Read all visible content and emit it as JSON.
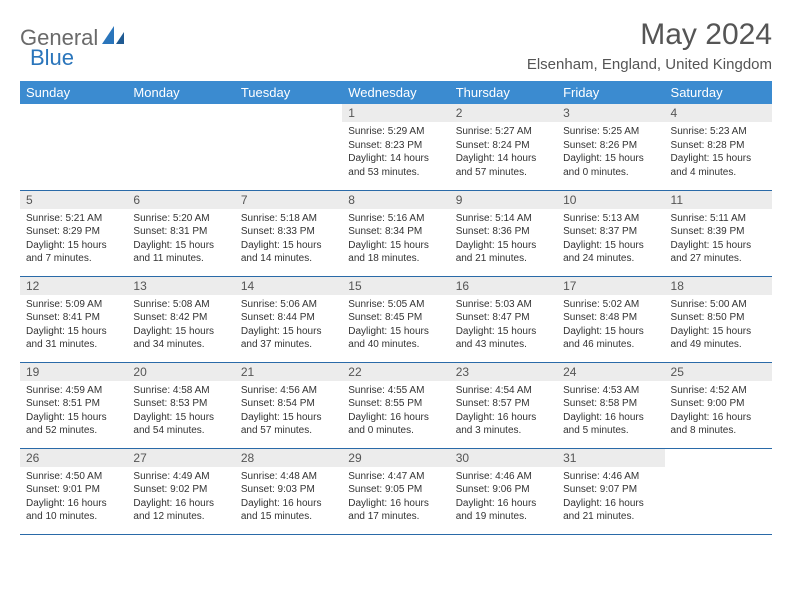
{
  "logo": {
    "general": "General",
    "blue": "Blue"
  },
  "title": "May 2024",
  "location": "Elsenham, England, United Kingdom",
  "colors": {
    "header_bg": "#3b8bd0",
    "header_text": "#ffffff",
    "daynum_bg": "#ececec",
    "row_border": "#2a6aa8",
    "logo_gray": "#6a6a6a",
    "logo_blue": "#2a75bb"
  },
  "weekdays": [
    "Sunday",
    "Monday",
    "Tuesday",
    "Wednesday",
    "Thursday",
    "Friday",
    "Saturday"
  ],
  "weeks": [
    [
      null,
      null,
      null,
      {
        "n": "1",
        "sr": "Sunrise: 5:29 AM",
        "ss": "Sunset: 8:23 PM",
        "dl": "Daylight: 14 hours and 53 minutes."
      },
      {
        "n": "2",
        "sr": "Sunrise: 5:27 AM",
        "ss": "Sunset: 8:24 PM",
        "dl": "Daylight: 14 hours and 57 minutes."
      },
      {
        "n": "3",
        "sr": "Sunrise: 5:25 AM",
        "ss": "Sunset: 8:26 PM",
        "dl": "Daylight: 15 hours and 0 minutes."
      },
      {
        "n": "4",
        "sr": "Sunrise: 5:23 AM",
        "ss": "Sunset: 8:28 PM",
        "dl": "Daylight: 15 hours and 4 minutes."
      }
    ],
    [
      {
        "n": "5",
        "sr": "Sunrise: 5:21 AM",
        "ss": "Sunset: 8:29 PM",
        "dl": "Daylight: 15 hours and 7 minutes."
      },
      {
        "n": "6",
        "sr": "Sunrise: 5:20 AM",
        "ss": "Sunset: 8:31 PM",
        "dl": "Daylight: 15 hours and 11 minutes."
      },
      {
        "n": "7",
        "sr": "Sunrise: 5:18 AM",
        "ss": "Sunset: 8:33 PM",
        "dl": "Daylight: 15 hours and 14 minutes."
      },
      {
        "n": "8",
        "sr": "Sunrise: 5:16 AM",
        "ss": "Sunset: 8:34 PM",
        "dl": "Daylight: 15 hours and 18 minutes."
      },
      {
        "n": "9",
        "sr": "Sunrise: 5:14 AM",
        "ss": "Sunset: 8:36 PM",
        "dl": "Daylight: 15 hours and 21 minutes."
      },
      {
        "n": "10",
        "sr": "Sunrise: 5:13 AM",
        "ss": "Sunset: 8:37 PM",
        "dl": "Daylight: 15 hours and 24 minutes."
      },
      {
        "n": "11",
        "sr": "Sunrise: 5:11 AM",
        "ss": "Sunset: 8:39 PM",
        "dl": "Daylight: 15 hours and 27 minutes."
      }
    ],
    [
      {
        "n": "12",
        "sr": "Sunrise: 5:09 AM",
        "ss": "Sunset: 8:41 PM",
        "dl": "Daylight: 15 hours and 31 minutes."
      },
      {
        "n": "13",
        "sr": "Sunrise: 5:08 AM",
        "ss": "Sunset: 8:42 PM",
        "dl": "Daylight: 15 hours and 34 minutes."
      },
      {
        "n": "14",
        "sr": "Sunrise: 5:06 AM",
        "ss": "Sunset: 8:44 PM",
        "dl": "Daylight: 15 hours and 37 minutes."
      },
      {
        "n": "15",
        "sr": "Sunrise: 5:05 AM",
        "ss": "Sunset: 8:45 PM",
        "dl": "Daylight: 15 hours and 40 minutes."
      },
      {
        "n": "16",
        "sr": "Sunrise: 5:03 AM",
        "ss": "Sunset: 8:47 PM",
        "dl": "Daylight: 15 hours and 43 minutes."
      },
      {
        "n": "17",
        "sr": "Sunrise: 5:02 AM",
        "ss": "Sunset: 8:48 PM",
        "dl": "Daylight: 15 hours and 46 minutes."
      },
      {
        "n": "18",
        "sr": "Sunrise: 5:00 AM",
        "ss": "Sunset: 8:50 PM",
        "dl": "Daylight: 15 hours and 49 minutes."
      }
    ],
    [
      {
        "n": "19",
        "sr": "Sunrise: 4:59 AM",
        "ss": "Sunset: 8:51 PM",
        "dl": "Daylight: 15 hours and 52 minutes."
      },
      {
        "n": "20",
        "sr": "Sunrise: 4:58 AM",
        "ss": "Sunset: 8:53 PM",
        "dl": "Daylight: 15 hours and 54 minutes."
      },
      {
        "n": "21",
        "sr": "Sunrise: 4:56 AM",
        "ss": "Sunset: 8:54 PM",
        "dl": "Daylight: 15 hours and 57 minutes."
      },
      {
        "n": "22",
        "sr": "Sunrise: 4:55 AM",
        "ss": "Sunset: 8:55 PM",
        "dl": "Daylight: 16 hours and 0 minutes."
      },
      {
        "n": "23",
        "sr": "Sunrise: 4:54 AM",
        "ss": "Sunset: 8:57 PM",
        "dl": "Daylight: 16 hours and 3 minutes."
      },
      {
        "n": "24",
        "sr": "Sunrise: 4:53 AM",
        "ss": "Sunset: 8:58 PM",
        "dl": "Daylight: 16 hours and 5 minutes."
      },
      {
        "n": "25",
        "sr": "Sunrise: 4:52 AM",
        "ss": "Sunset: 9:00 PM",
        "dl": "Daylight: 16 hours and 8 minutes."
      }
    ],
    [
      {
        "n": "26",
        "sr": "Sunrise: 4:50 AM",
        "ss": "Sunset: 9:01 PM",
        "dl": "Daylight: 16 hours and 10 minutes."
      },
      {
        "n": "27",
        "sr": "Sunrise: 4:49 AM",
        "ss": "Sunset: 9:02 PM",
        "dl": "Daylight: 16 hours and 12 minutes."
      },
      {
        "n": "28",
        "sr": "Sunrise: 4:48 AM",
        "ss": "Sunset: 9:03 PM",
        "dl": "Daylight: 16 hours and 15 minutes."
      },
      {
        "n": "29",
        "sr": "Sunrise: 4:47 AM",
        "ss": "Sunset: 9:05 PM",
        "dl": "Daylight: 16 hours and 17 minutes."
      },
      {
        "n": "30",
        "sr": "Sunrise: 4:46 AM",
        "ss": "Sunset: 9:06 PM",
        "dl": "Daylight: 16 hours and 19 minutes."
      },
      {
        "n": "31",
        "sr": "Sunrise: 4:46 AM",
        "ss": "Sunset: 9:07 PM",
        "dl": "Daylight: 16 hours and 21 minutes."
      },
      null
    ]
  ]
}
